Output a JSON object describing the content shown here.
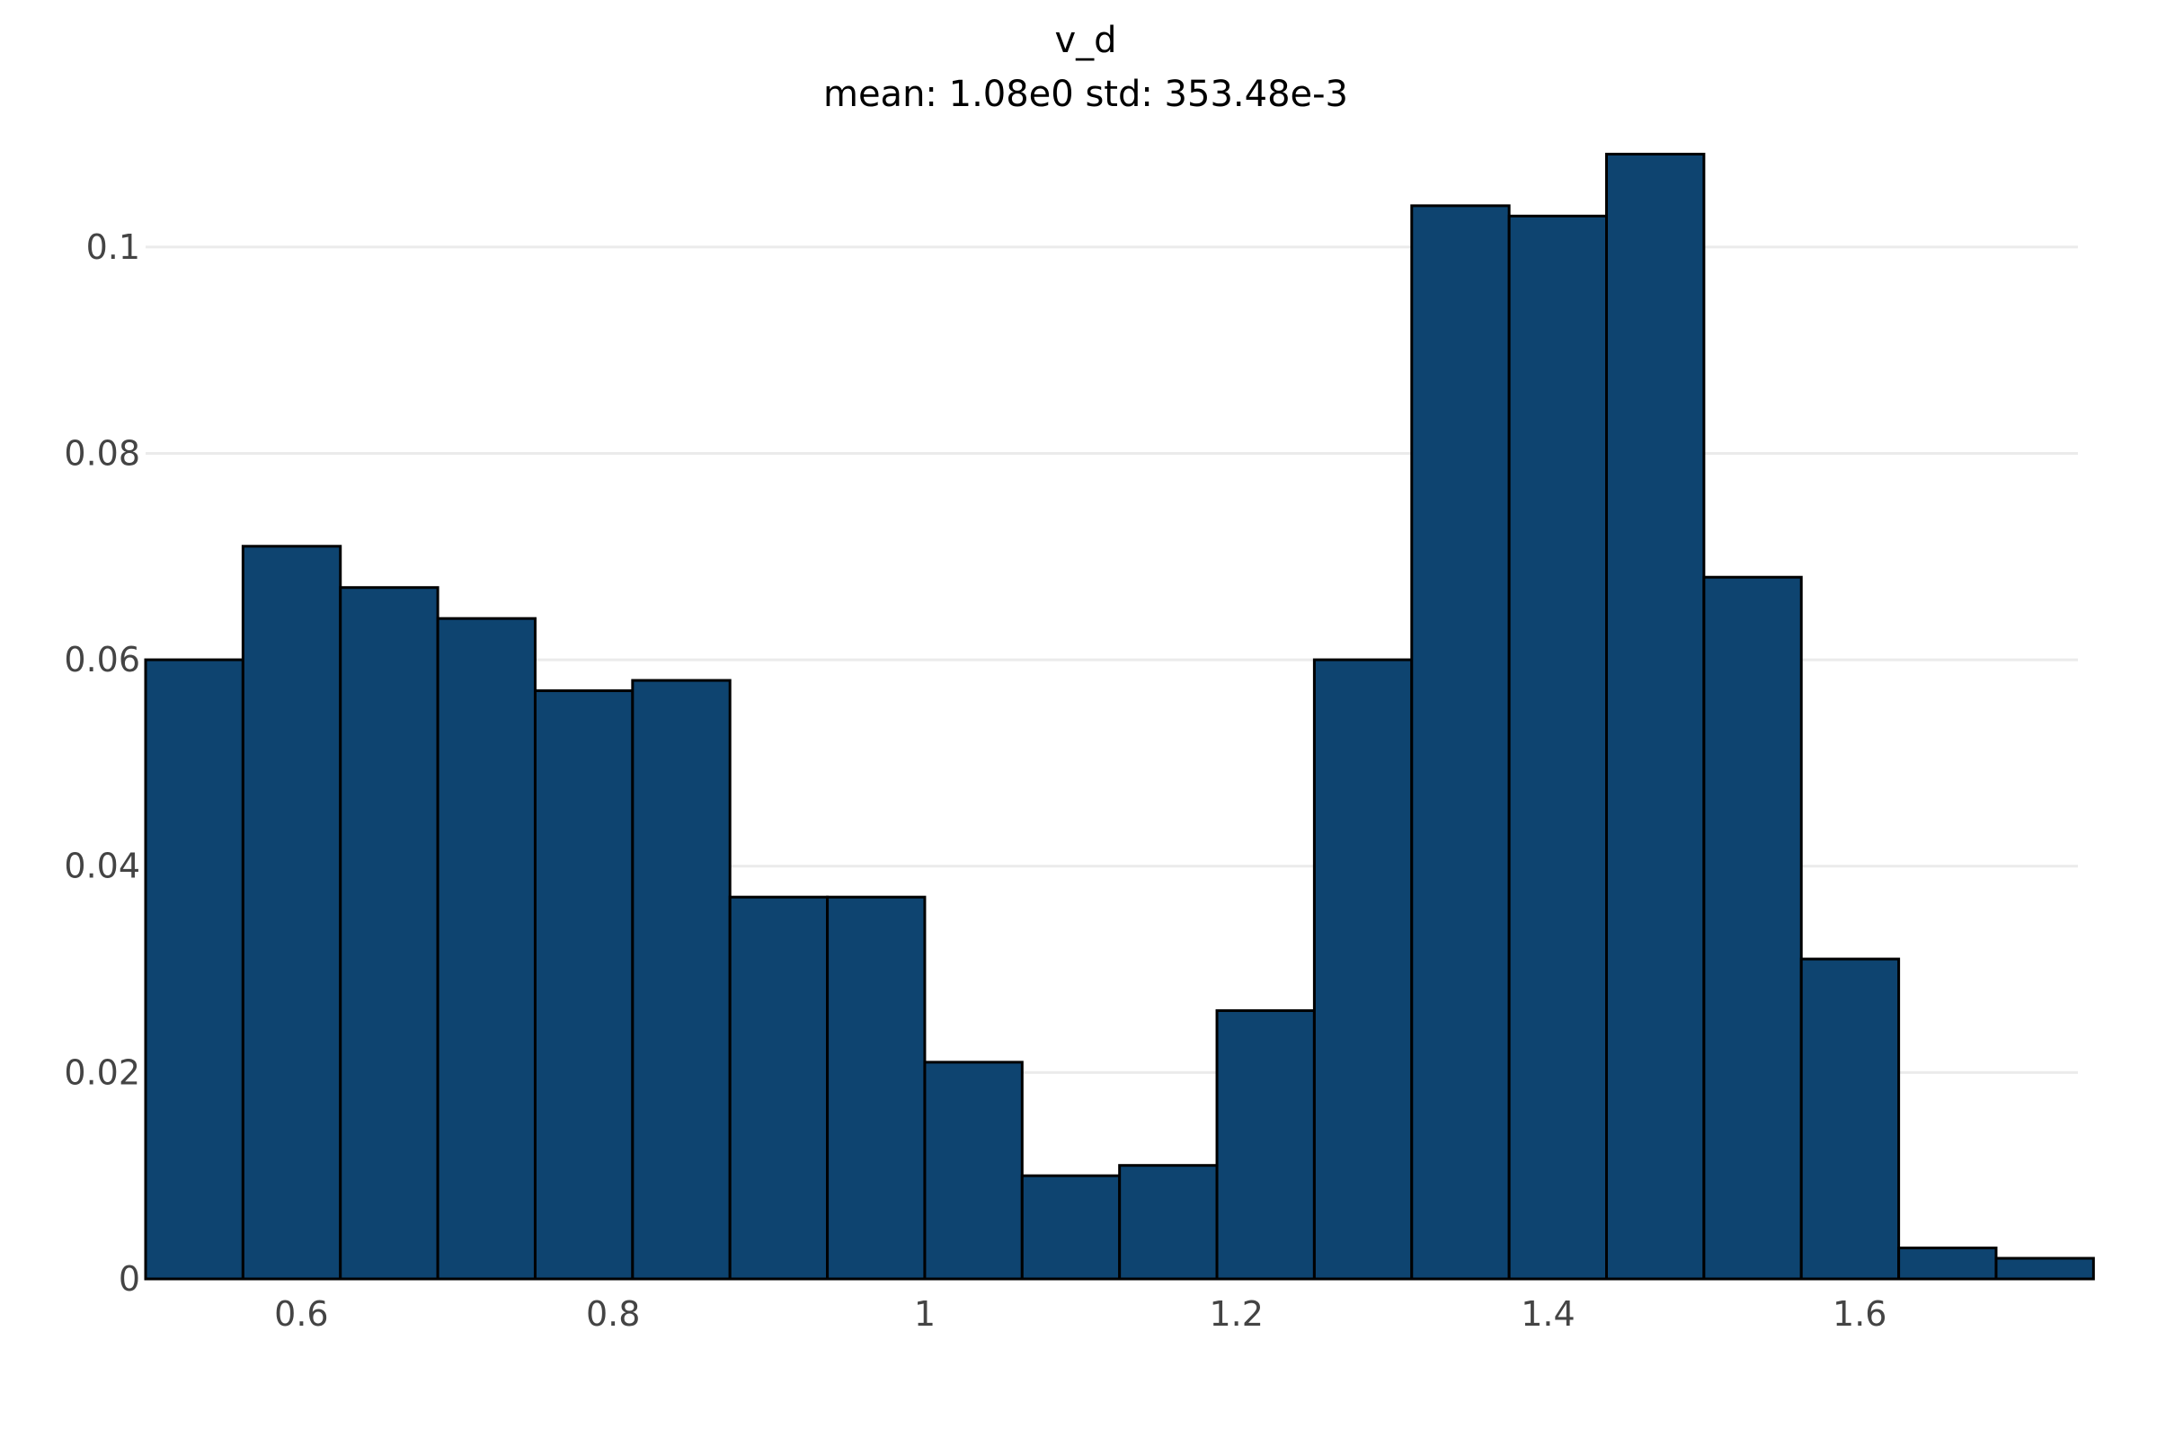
{
  "chart_data": {
    "type": "bar",
    "title": "v_d",
    "subtitle": "mean: 1.08e0 std: 353.48e-3",
    "xlabel": "",
    "ylabel": "",
    "bin_edges": [
      0.5,
      0.5625,
      0.625,
      0.6875,
      0.75,
      0.8125,
      0.875,
      0.9375,
      1.0,
      1.0625,
      1.125,
      1.1875,
      1.25,
      1.3125,
      1.375,
      1.4375,
      1.5,
      1.5625,
      1.625,
      1.6875,
      1.75
    ],
    "values": [
      0.06,
      0.071,
      0.067,
      0.064,
      0.057,
      0.058,
      0.037,
      0.037,
      0.021,
      0.01,
      0.011,
      0.026,
      0.06,
      0.104,
      0.103,
      0.109,
      0.068,
      0.031,
      0.003,
      0.002
    ],
    "xlim": [
      0.5,
      1.74
    ],
    "ylim": [
      0,
      0.11
    ],
    "x_ticks": [
      0.6,
      0.8,
      1.0,
      1.2,
      1.4,
      1.6
    ],
    "x_tick_labels": [
      "0.6",
      "0.8",
      "1",
      "1.2",
      "1.4",
      "1.6"
    ],
    "y_ticks": [
      0,
      0.02,
      0.04,
      0.06,
      0.08,
      0.1
    ],
    "y_tick_labels": [
      "0",
      "0.02",
      "0.04",
      "0.06",
      "0.08",
      "0.1"
    ],
    "grid": true,
    "legend": "none",
    "bar_color": "#0e4470",
    "bar_edge_color": "#000000",
    "grid_color": "#ebebeb",
    "tick_label_color": "#444444"
  }
}
